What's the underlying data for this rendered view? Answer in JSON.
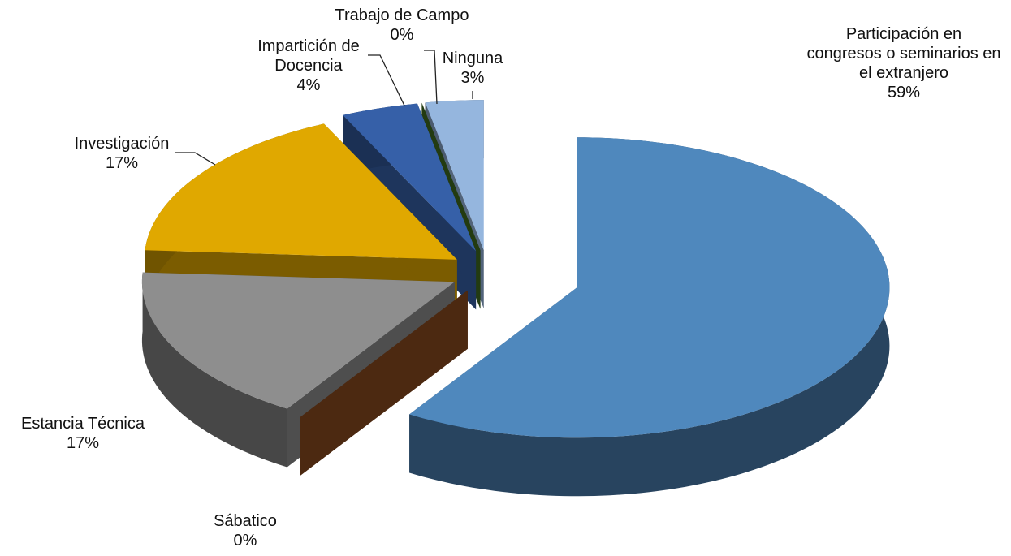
{
  "chart_data": {
    "type": "pie3d",
    "categories": [
      "Participación en congresos o seminarios en el extranjero",
      "Sábatico",
      "Estancia Técnica",
      "Investigación",
      "Impartición de Docencia",
      "Trabajo de Campo",
      "Ninguna"
    ],
    "values": [
      59,
      0,
      17,
      17,
      4,
      0,
      3
    ],
    "value_labels": [
      "59%",
      "0%",
      "17%",
      "17%",
      "4%",
      "0%",
      "3%"
    ],
    "colors": [
      "#4f88bd",
      "#8b4a1f",
      "#8e8e8e",
      "#e0a800",
      "#3660a8",
      "#3f6b1f",
      "#95b6de"
    ]
  }
}
